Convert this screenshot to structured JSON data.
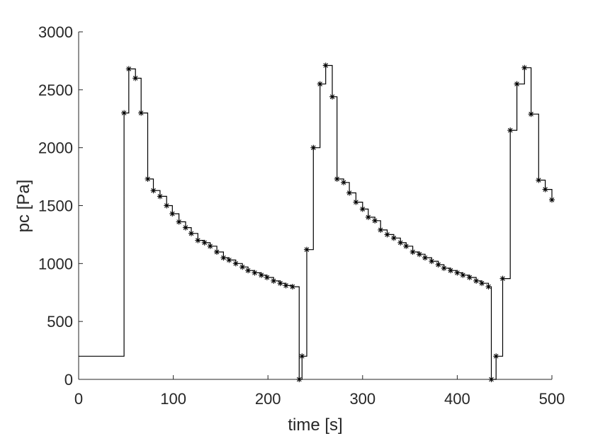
{
  "chart_data": {
    "type": "line",
    "style": "stairs",
    "marker": "asterisk",
    "color": "#000000",
    "xlabel": "time [s]",
    "ylabel": "pc [Pa]",
    "xlim": [
      0,
      500
    ],
    "ylim": [
      0,
      3000
    ],
    "xticks": [
      0,
      100,
      200,
      300,
      400,
      500
    ],
    "yticks": [
      0,
      500,
      1000,
      1500,
      2000,
      2500,
      3000
    ],
    "grid": false,
    "series": [
      {
        "x": [
          0,
          48,
          53,
          60,
          66,
          73,
          79,
          86,
          93,
          99,
          106,
          113,
          119,
          126,
          133,
          139,
          146,
          153,
          159,
          166,
          173,
          179,
          186,
          193,
          199,
          206,
          213,
          219,
          226,
          233,
          236,
          241,
          248,
          255,
          261,
          268,
          273,
          280,
          286,
          293,
          300,
          306,
          313,
          319,
          326,
          333,
          340,
          346,
          353,
          360,
          366,
          373,
          380,
          386,
          393,
          400,
          406,
          413,
          420,
          426,
          433,
          436,
          441,
          448,
          456,
          463,
          471,
          478,
          486,
          493,
          500
        ],
        "y": [
          200,
          2300,
          2680,
          2600,
          2300,
          1730,
          1630,
          1580,
          1500,
          1430,
          1360,
          1310,
          1260,
          1200,
          1180,
          1150,
          1100,
          1050,
          1030,
          1000,
          970,
          940,
          920,
          900,
          880,
          850,
          830,
          810,
          800,
          0,
          200,
          1120,
          2000,
          2550,
          2710,
          2440,
          1730,
          1700,
          1610,
          1530,
          1470,
          1400,
          1370,
          1290,
          1250,
          1220,
          1180,
          1150,
          1100,
          1080,
          1050,
          1020,
          990,
          960,
          940,
          920,
          900,
          880,
          850,
          830,
          800,
          0,
          200,
          870,
          2150,
          2550,
          2690,
          2290,
          1720,
          1640,
          1550
        ]
      }
    ]
  }
}
